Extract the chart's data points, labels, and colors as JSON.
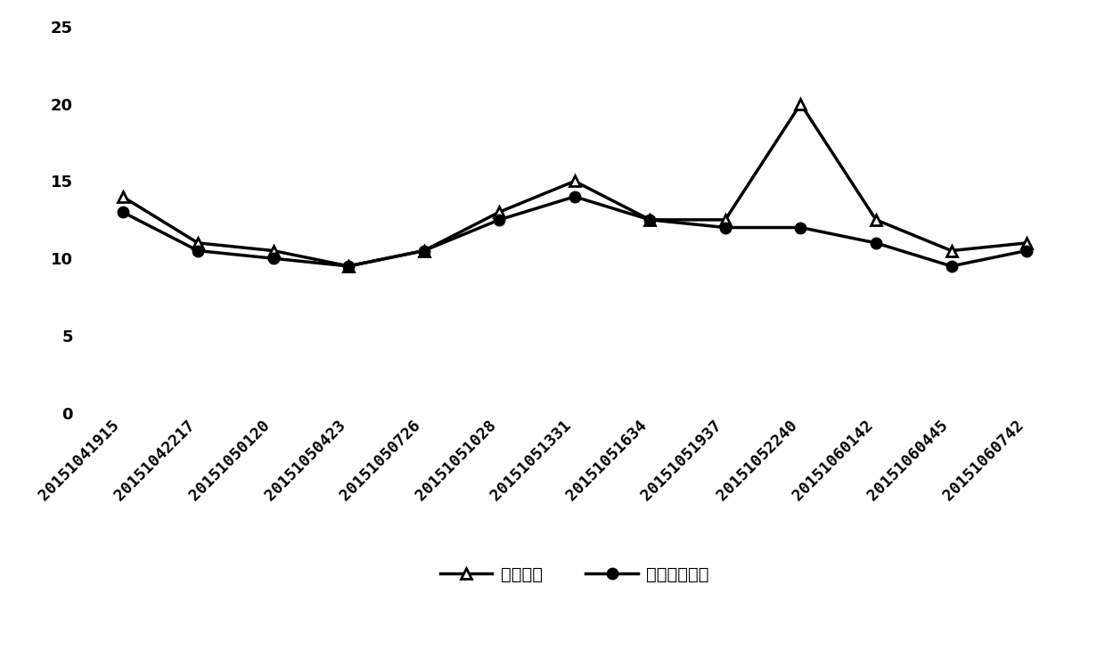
{
  "x_labels": [
    "20151041915",
    "20151042217",
    "20151050120",
    "20151050423",
    "20151050726",
    "20151051028",
    "20151051331",
    "20151051634",
    "20151051937",
    "20151052240",
    "20151060142",
    "20151060445",
    "20151060742"
  ],
  "raw_data": [
    14.0,
    11.0,
    10.5,
    9.5,
    10.5,
    13.0,
    15.0,
    12.5,
    12.5,
    20.0,
    12.5,
    10.5,
    11.0
  ],
  "processed_data": [
    13.0,
    10.5,
    10.0,
    9.5,
    10.5,
    12.5,
    14.0,
    12.5,
    12.0,
    12.0,
    11.0,
    9.5,
    10.5
  ],
  "ylim": [
    0,
    25
  ],
  "yticks": [
    0,
    5,
    10,
    15,
    20,
    25
  ],
  "line_color": "#000000",
  "marker_raw": "^",
  "marker_processed": "o",
  "marker_size": 8,
  "line_width": 2.5,
  "legend_raw": "原始数据",
  "legend_processed": "处理后的数据",
  "font_size_tick": 13,
  "font_size_legend": 14,
  "background_color": "#ffffff"
}
